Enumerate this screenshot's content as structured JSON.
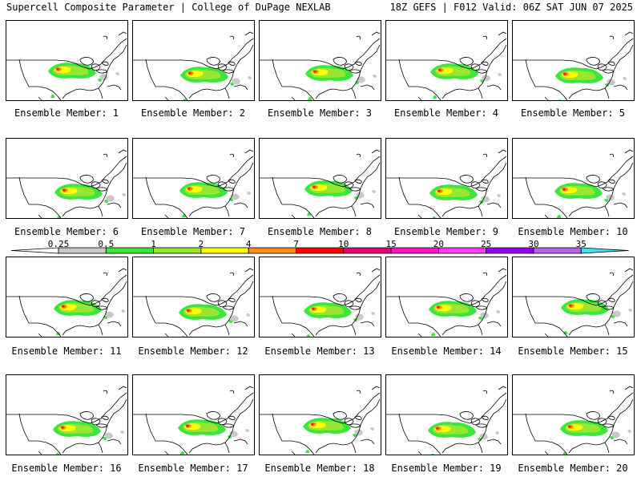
{
  "header": {
    "title_left": "Supercell Composite Parameter | College of DuPage NEXLAB",
    "title_right": "18Z GEFS | F012 Valid: 06Z SAT JUN 07 2025"
  },
  "colorbar": {
    "ticks": [
      "0.25",
      "0.5",
      "1",
      "2",
      "4",
      "7",
      "10",
      "15",
      "20",
      "25",
      "30",
      "35"
    ],
    "colors": [
      "#c8c8c8",
      "#3ce63c",
      "#96e632",
      "#ffff00",
      "#ff8c1e",
      "#ff0000",
      "#e6007a",
      "#ff14c8",
      "#ff3cff",
      "#9600f0",
      "#b464e6",
      "#40e0f0"
    ]
  },
  "panels": [
    {
      "label": "Ensemble Member: 1"
    },
    {
      "label": "Ensemble Member: 2"
    },
    {
      "label": "Ensemble Member: 3"
    },
    {
      "label": "Ensemble Member: 4"
    },
    {
      "label": "Ensemble Member: 5"
    },
    {
      "label": "Ensemble Member: 6"
    },
    {
      "label": "Ensemble Member: 7"
    },
    {
      "label": "Ensemble Member: 8"
    },
    {
      "label": "Ensemble Member: 9"
    },
    {
      "label": "Ensemble Member: 10"
    },
    {
      "label": "Ensemble Member: 11"
    },
    {
      "label": "Ensemble Member: 12"
    },
    {
      "label": "Ensemble Member: 13"
    },
    {
      "label": "Ensemble Member: 14"
    },
    {
      "label": "Ensemble Member: 15"
    },
    {
      "label": "Ensemble Member: 16"
    },
    {
      "label": "Ensemble Member: 17"
    },
    {
      "label": "Ensemble Member: 18"
    },
    {
      "label": "Ensemble Member: 19"
    },
    {
      "label": "Ensemble Member: 20"
    }
  ]
}
